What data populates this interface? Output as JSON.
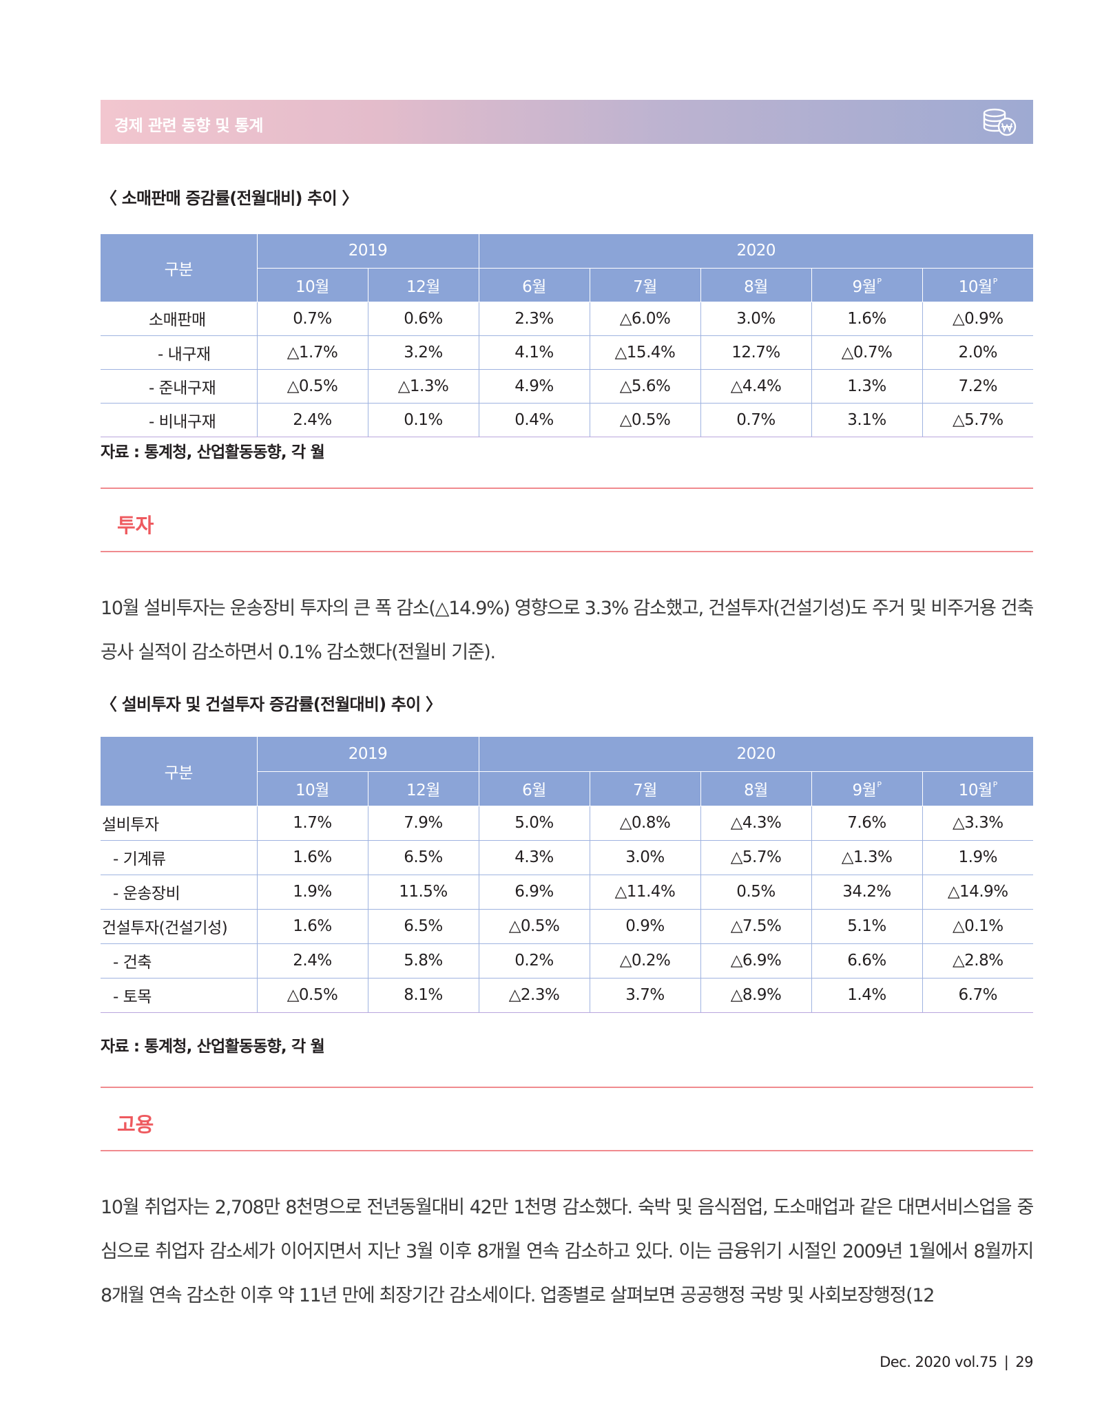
{
  "header": {
    "title": "경제 관련 동향 및 통계",
    "icon": "coin-stack-won-icon"
  },
  "retail": {
    "caption": "〈 소매판매 증감률(전월대비) 추이 〉",
    "headers": {
      "category": "구분",
      "year1": "2019",
      "year2": "2020",
      "months": [
        "10월",
        "12월",
        "6월",
        "7월",
        "8월",
        "9월",
        "10월"
      ],
      "prelim_mark": "P"
    },
    "rows": [
      {
        "label": "소매판매",
        "values": [
          "0.7%",
          "0.6%",
          "2.3%",
          "△6.0%",
          "3.0%",
          "1.6%",
          "△0.9%"
        ]
      },
      {
        "label": "- 내구재",
        "values": [
          "△1.7%",
          "3.2%",
          "4.1%",
          "△15.4%",
          "12.7%",
          "△0.7%",
          "2.0%"
        ]
      },
      {
        "label": "- 준내구재",
        "values": [
          "△0.5%",
          "△1.3%",
          "4.9%",
          "△5.6%",
          "△4.4%",
          "1.3%",
          "7.2%"
        ]
      },
      {
        "label": "- 비내구재",
        "values": [
          "2.4%",
          "0.1%",
          "0.4%",
          "△0.5%",
          "0.7%",
          "3.1%",
          "△5.7%"
        ]
      }
    ],
    "source": "자료 : 통계청, 산업활동동향, 각 월"
  },
  "investment": {
    "section_title": "투자",
    "paragraph": "10월 설비투자는 운송장비 투자의 큰 폭 감소(△14.9%) 영향으로 3.3% 감소했고, 건설투자(건설기성)도 주거 및 비주거용 건축 공사 실적이 감소하면서 0.1% 감소했다(전월비 기준).",
    "caption": "〈 설비투자 및 건설투자 증감률(전월대비) 추이 〉",
    "headers": {
      "category": "구분",
      "year1": "2019",
      "year2": "2020",
      "months": [
        "10월",
        "12월",
        "6월",
        "7월",
        "8월",
        "9월",
        "10월"
      ],
      "prelim_mark": "P"
    },
    "rows": [
      {
        "label": "설비투자",
        "values": [
          "1.7%",
          "7.9%",
          "5.0%",
          "△0.8%",
          "△4.3%",
          "7.6%",
          "△3.3%"
        ]
      },
      {
        "label": "- 기계류",
        "values": [
          "1.6%",
          "6.5%",
          "4.3%",
          "3.0%",
          "△5.7%",
          "△1.3%",
          "1.9%"
        ]
      },
      {
        "label": "- 운송장비",
        "values": [
          "1.9%",
          "11.5%",
          "6.9%",
          "△11.4%",
          "0.5%",
          "34.2%",
          "△14.9%"
        ]
      },
      {
        "label": "건설투자(건설기성)",
        "values": [
          "1.6%",
          "6.5%",
          "△0.5%",
          "0.9%",
          "△7.5%",
          "5.1%",
          "△0.1%"
        ]
      },
      {
        "label": "- 건축",
        "values": [
          "2.4%",
          "5.8%",
          "0.2%",
          "△0.2%",
          "△6.9%",
          "6.6%",
          "△2.8%"
        ]
      },
      {
        "label": "- 토목",
        "values": [
          "△0.5%",
          "8.1%",
          "△2.3%",
          "3.7%",
          "△8.9%",
          "1.4%",
          "6.7%"
        ]
      }
    ],
    "source": "자료 : 통계청, 산업활동동향, 각 월"
  },
  "employment": {
    "section_title": "고용",
    "paragraph": "10월 취업자는 2,708만 8천명으로 전년동월대비 42만 1천명 감소했다. 숙박 및 음식점업, 도소매업과 같은 대면서비스업을 중심으로 취업자 감소세가 이어지면서 지난 3월 이후 8개월 연속 감소하고 있다. 이는 금융위기 시절인 2009년 1월에서 8월까지 8개월 연속 감소한 이후 약 11년 만에 최장기간 감소세이다. 업종별로 살펴보면 공공행정 국방 및 사회보장행정(12"
  },
  "footer": {
    "issue": "Dec. 2020 vol.75",
    "separator": "|",
    "page": "29"
  }
}
